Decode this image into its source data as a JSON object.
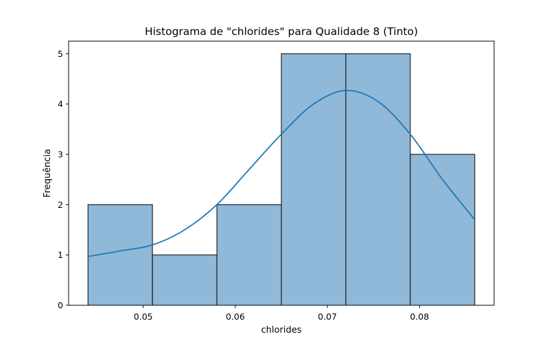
{
  "chart_data": {
    "type": "bar",
    "title": "Histograma de \"chlorides\" para Qualidade 8 (Tinto)",
    "xlabel": "chlorides",
    "ylabel": "Frequência",
    "bins": [
      {
        "start": 0.044,
        "end": 0.051,
        "count": 2
      },
      {
        "start": 0.051,
        "end": 0.058,
        "count": 1
      },
      {
        "start": 0.058,
        "end": 0.065,
        "count": 2
      },
      {
        "start": 0.065,
        "end": 0.072,
        "count": 5
      },
      {
        "start": 0.072,
        "end": 0.079,
        "count": 5
      },
      {
        "start": 0.079,
        "end": 0.086,
        "count": 3
      }
    ],
    "kde": {
      "x": [
        0.044,
        0.0475,
        0.051,
        0.0545,
        0.058,
        0.0615,
        0.065,
        0.0685,
        0.072,
        0.0755,
        0.079,
        0.0825,
        0.086
      ],
      "y": [
        0.97,
        1.08,
        1.2,
        1.5,
        2.0,
        2.7,
        3.4,
        4.0,
        4.27,
        4.05,
        3.4,
        2.5,
        1.7
      ]
    },
    "xlim": [
      0.0419,
      0.0881
    ],
    "ylim": [
      0,
      5.25
    ],
    "xticks": [
      {
        "value": 0.05,
        "label": "0.05"
      },
      {
        "value": 0.06,
        "label": "0.06"
      },
      {
        "value": 0.07,
        "label": "0.07"
      },
      {
        "value": 0.08,
        "label": "0.08"
      }
    ],
    "yticks": [
      {
        "value": 0,
        "label": "0"
      },
      {
        "value": 1,
        "label": "1"
      },
      {
        "value": 2,
        "label": "2"
      },
      {
        "value": 3,
        "label": "3"
      },
      {
        "value": 4,
        "label": "4"
      },
      {
        "value": 5,
        "label": "5"
      }
    ],
    "colors": {
      "bar": "#8fb8d9",
      "kde": "#1f77b4"
    },
    "grid": false,
    "legend": "none"
  }
}
